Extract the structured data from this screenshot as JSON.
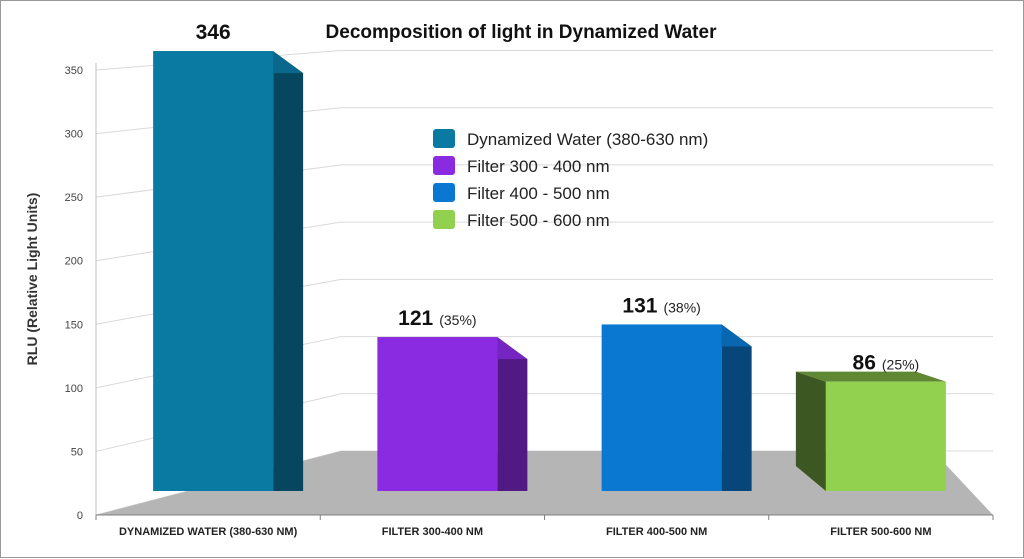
{
  "chart_data": {
    "type": "bar",
    "title": "Decomposition of light in Dynamized Water",
    "ylabel": "RLU  (Relative Light Units)",
    "xlabel": "",
    "ylim": [
      0,
      350
    ],
    "yticks": [
      "0",
      "50",
      "100",
      "150",
      "200",
      "250",
      "300",
      "350"
    ],
    "categories": [
      "DYNAMIZED WATER (380-630 NM)",
      "FILTER 300-400 NM",
      "FILTER 400-500 NM",
      "FILTER 500-600 NM"
    ],
    "values": [
      346,
      121,
      131,
      86
    ],
    "value_labels": [
      "346",
      "121",
      "131",
      "86"
    ],
    "percent_labels": [
      "",
      "(35%)",
      "(38%)",
      "(25%)"
    ],
    "colors": [
      "#0a7aa3",
      "#8a2be2",
      "#0a78d0",
      "#92d050"
    ],
    "legend": {
      "position": "top-right",
      "entries": [
        "Dynamized Water (380-630 nm)",
        "Filter 300 - 400 nm",
        "Filter 400 - 500 nm",
        "Filter 500 - 600 nm"
      ]
    },
    "grid": true,
    "style": "3d"
  }
}
